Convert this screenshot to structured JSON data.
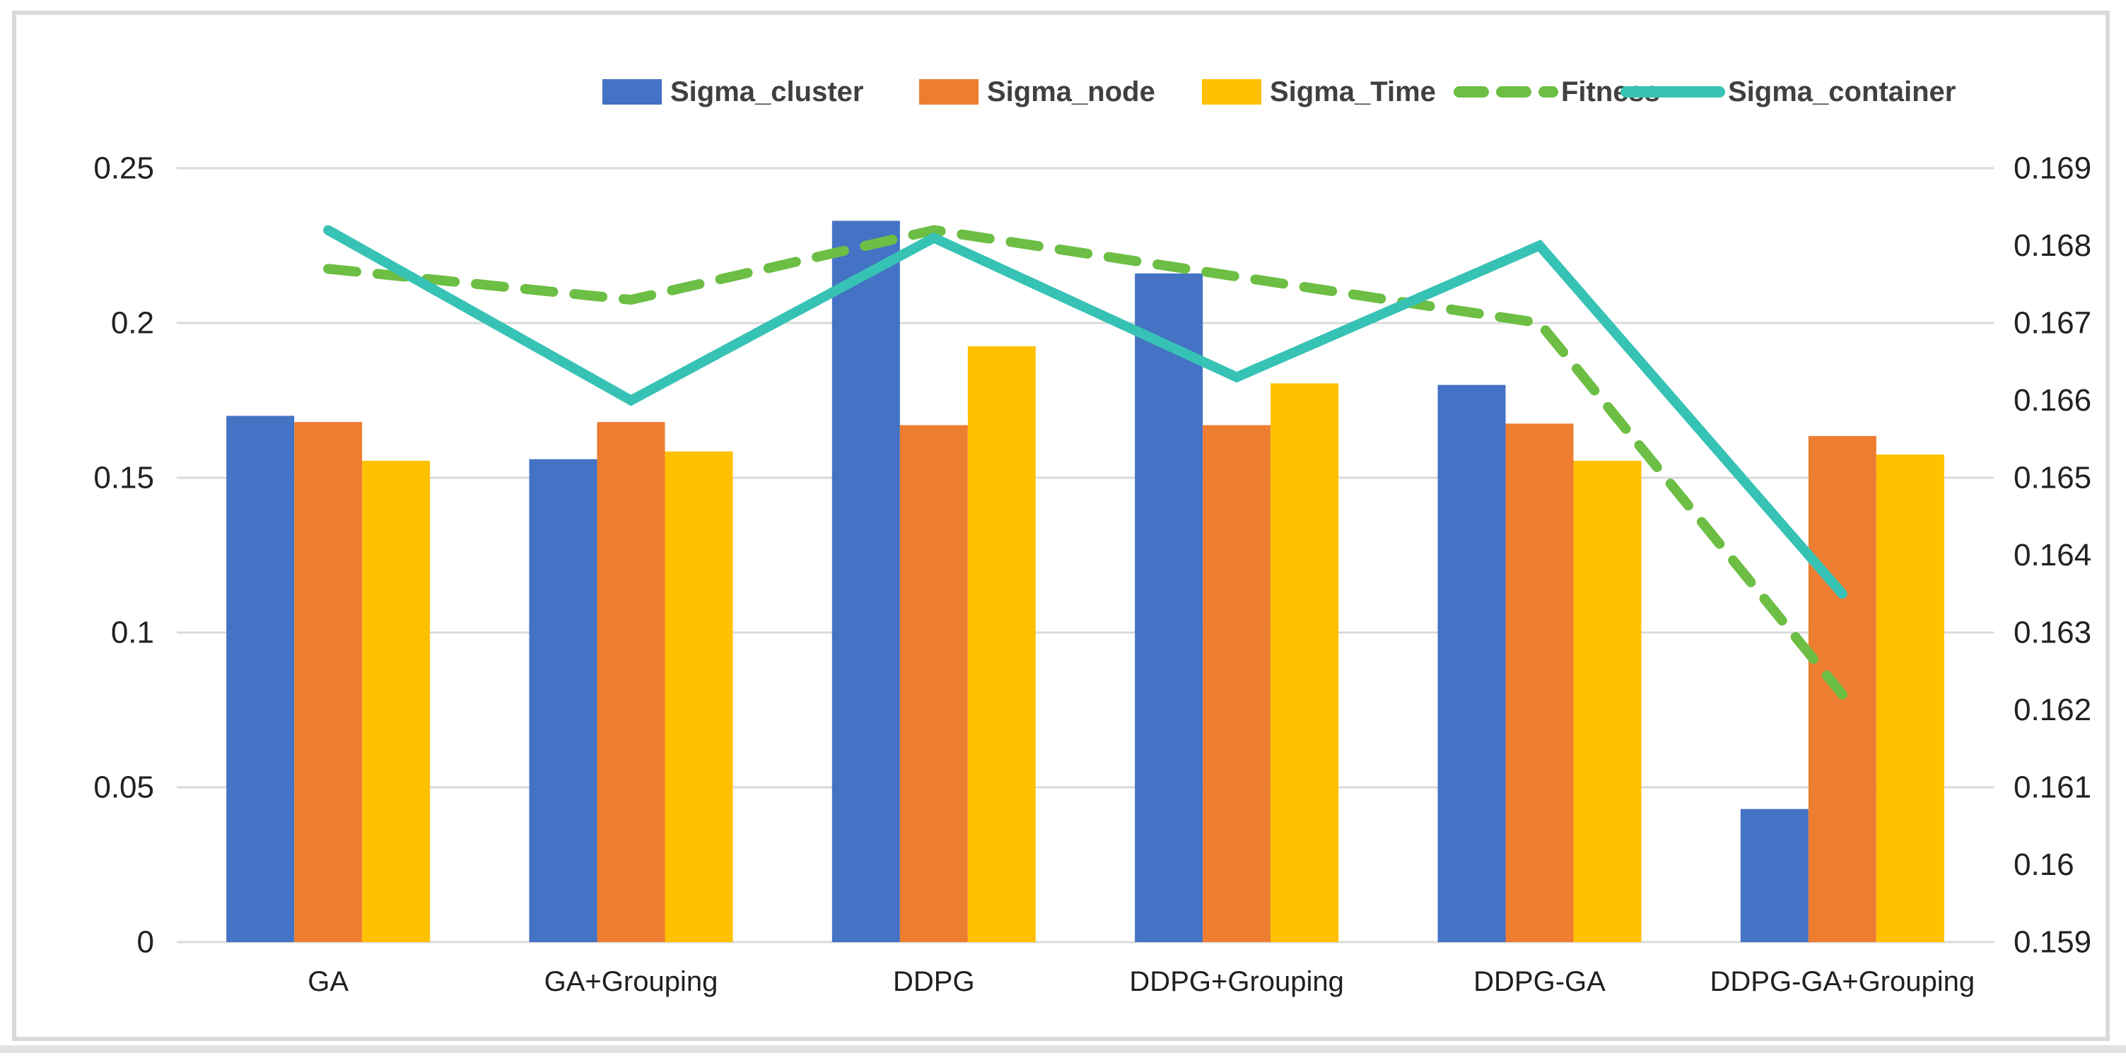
{
  "chart_data": {
    "type": "bar",
    "subtype": "combo-bar-line",
    "categories": [
      "GA",
      "GA+Grouping",
      "DDPG",
      "DDPG+Grouping",
      "DDPG-GA",
      "DDPG-GA+Grouping"
    ],
    "series": [
      {
        "name": "Sigma_cluster",
        "kind": "bar",
        "axis": "left",
        "color": "#4472C4",
        "values": [
          0.17,
          0.156,
          0.233,
          0.216,
          0.18,
          0.043
        ]
      },
      {
        "name": "Sigma_node",
        "kind": "bar",
        "axis": "left",
        "color": "#ED7D31",
        "values": [
          0.168,
          0.168,
          0.167,
          0.167,
          0.1675,
          0.1635
        ]
      },
      {
        "name": "Sigma_Time",
        "kind": "bar",
        "axis": "left",
        "color": "#FFC000",
        "values": [
          0.1555,
          0.1585,
          0.1925,
          0.1805,
          0.1555,
          0.1575
        ]
      },
      {
        "name": "Fitness",
        "kind": "line",
        "style": "dashed",
        "axis": "right",
        "color": "#6CBE44",
        "values": [
          0.1677,
          0.1673,
          0.1682,
          0.1676,
          0.167,
          0.1622
        ]
      },
      {
        "name": "Sigma_container",
        "kind": "line",
        "style": "solid",
        "axis": "right",
        "color": "#36C2B4",
        "values": [
          0.1682,
          0.166,
          0.1681,
          0.1663,
          0.168,
          0.1635
        ]
      }
    ],
    "left_axis": {
      "min": 0,
      "max": 0.25,
      "tick_labels": [
        "0.25",
        "0.2",
        "0.15",
        "0.1",
        "0.05",
        "0"
      ]
    },
    "right_axis": {
      "min": 0.159,
      "max": 0.169,
      "tick_labels": [
        "0.169",
        "0.168",
        "0.167",
        "0.166",
        "0.165",
        "0.164",
        "0.163",
        "0.162",
        "0.161",
        "0.16",
        "0.159"
      ]
    },
    "grid": true,
    "legend_position": "top",
    "title": "",
    "xlabel": "",
    "ylabel": ""
  }
}
